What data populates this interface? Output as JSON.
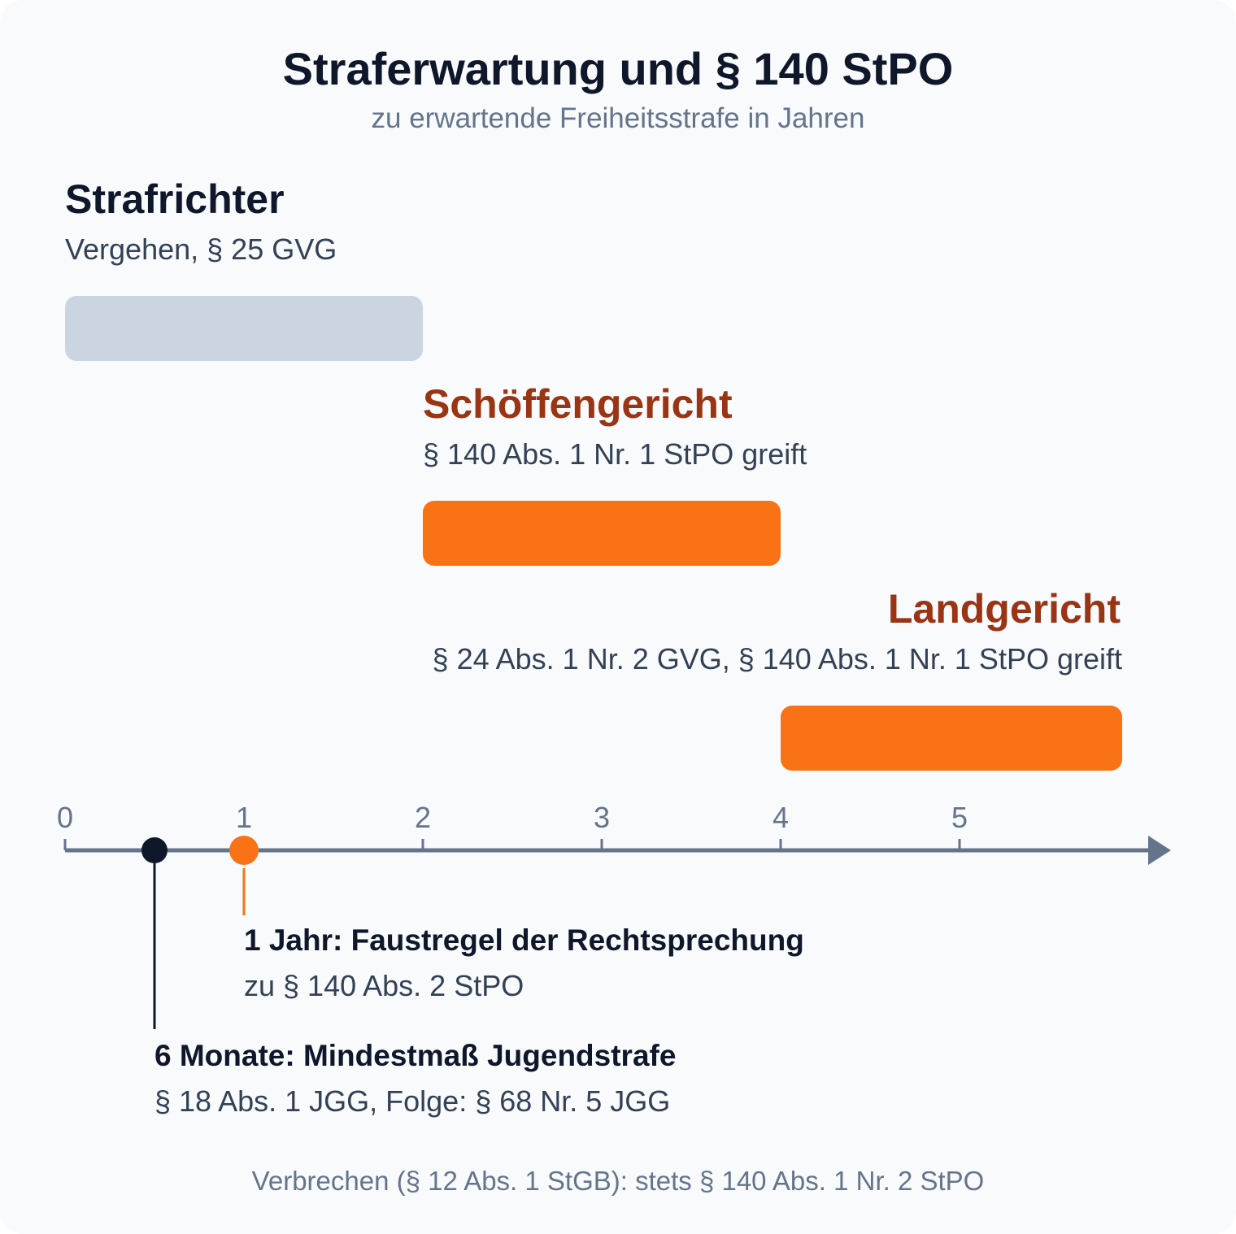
{
  "header": {
    "title": "Straferwartung und § 140 StPO",
    "subtitle": "zu erwartende Freiheitsstrafe in Jahren"
  },
  "courts": [
    {
      "name": "Strafrichter",
      "basis": "Vergehen, § 25 GVG",
      "from": 0,
      "to": 2,
      "color": "#cbd5e1",
      "label_color": "#0f172a"
    },
    {
      "name": "Schöffengericht",
      "basis": "§ 140 Abs. 1 Nr. 1 StPO greift",
      "from": 2,
      "to": 4,
      "color": "#f97316",
      "label_color": "#9a3412"
    },
    {
      "name": "Landgericht",
      "basis": "§ 24 Abs. 1 Nr. 2 GVG, § 140 Abs. 1 Nr. 1 StPO greift",
      "from": 4,
      "to": 6,
      "color": "#f97316",
      "label_color": "#9a3412"
    }
  ],
  "axis": {
    "ticks": [
      "0",
      "1",
      "2",
      "3",
      "4",
      "5"
    ],
    "tick_values": [
      0,
      1,
      2,
      3,
      4,
      5
    ],
    "color": "#64748b"
  },
  "markers": [
    {
      "value": 1,
      "color": "#f97316",
      "title": "1 Jahr: Faustregel der Rechtsprechung",
      "subtitle": "zu § 140 Abs. 2 StPO"
    },
    {
      "value": 0.5,
      "color": "#0f172a",
      "title": "6 Monate: Mindestmaß Jugendstrafe",
      "subtitle": "§ 18 Abs. 1 JGG, Folge: § 68 Nr. 5 JGG"
    }
  ],
  "footer": {
    "note": "Verbrechen (§ 12 Abs. 1 StGB): stets § 140 Abs. 1 Nr. 2 StPO"
  }
}
